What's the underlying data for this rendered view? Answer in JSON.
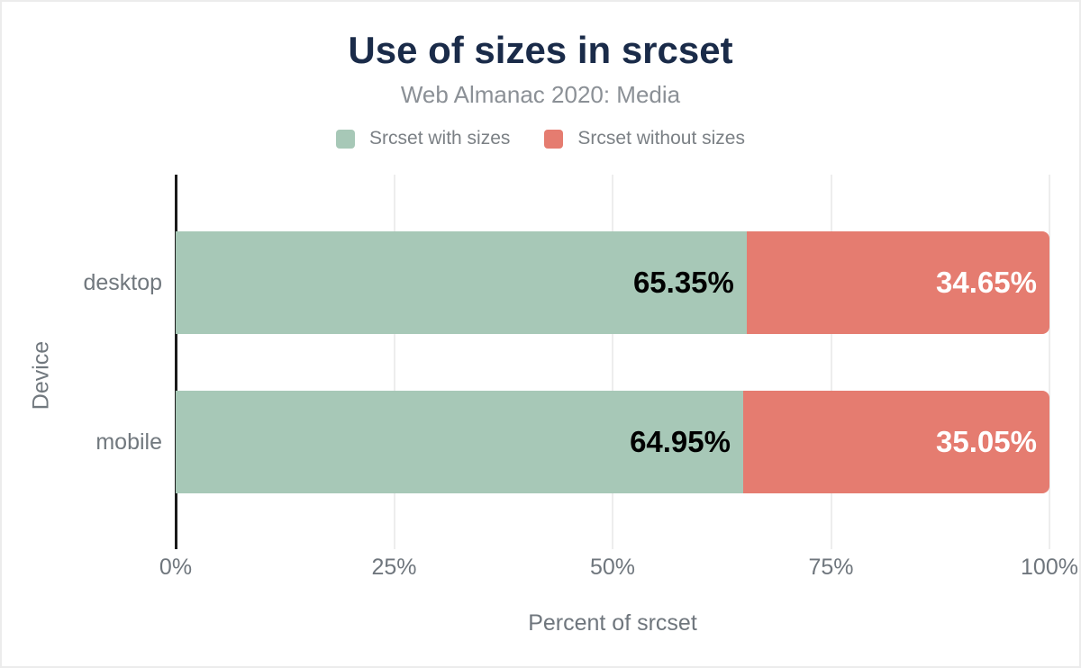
{
  "figure": {
    "title": "Use of sizes in srcset",
    "subtitle": "Web Almanac 2020: Media"
  },
  "chart_data": {
    "type": "bar",
    "orientation": "horizontal",
    "stacked": true,
    "title": "Use of sizes in srcset",
    "subtitle": "Web Almanac 2020: Media",
    "categories": [
      "desktop",
      "mobile"
    ],
    "series": [
      {
        "name": "Srcset with sizes",
        "color": "#a7c8b7",
        "label_color": "#000000",
        "values": [
          65.35,
          64.95
        ]
      },
      {
        "name": "Srcset without sizes",
        "color": "#e57c70",
        "label_color": "#ffffff",
        "values": [
          34.65,
          35.05
        ]
      }
    ],
    "xlabel": "Percent of srcset",
    "ylabel": "Device",
    "xlim": [
      0,
      100
    ],
    "x_ticks": [
      {
        "value": 0,
        "label": "0%"
      },
      {
        "value": 25,
        "label": "25%"
      },
      {
        "value": 50,
        "label": "50%"
      },
      {
        "value": 75,
        "label": "75%"
      },
      {
        "value": 100,
        "label": "100%"
      }
    ],
    "grid": "vertical",
    "legend_position": "top",
    "value_label_suffix": "%"
  },
  "colors": {
    "title": "#1a2b49",
    "subtitle": "#8b9096",
    "axis_text": "#6f767d",
    "axis_line": "#1b1b1b",
    "gridline": "#ededed"
  }
}
